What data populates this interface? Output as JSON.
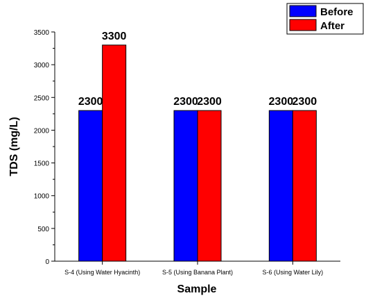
{
  "chart_data": {
    "type": "bar",
    "categories": [
      "S-4 (Using Water Hyacinth)",
      "S-5 (Using Banana Plant)",
      "S-6 (Using Water Lily)"
    ],
    "series": [
      {
        "name": "Before",
        "values": [
          2300,
          2300,
          2300
        ],
        "color": "#0000ff"
      },
      {
        "name": "After",
        "values": [
          3300,
          2300,
          2300
        ],
        "color": "#ff0000"
      }
    ],
    "data_labels": [
      [
        "2300",
        "2300",
        "2300"
      ],
      [
        "3300",
        "2300",
        "2300"
      ]
    ],
    "xlabel": "Sample",
    "ylabel": "TDS (mg/L)",
    "ylim": [
      0,
      3500
    ],
    "yticks": [
      0,
      500,
      1000,
      1500,
      2000,
      2500,
      3000,
      3500
    ],
    "grid": false,
    "legend_position": "top-right"
  }
}
